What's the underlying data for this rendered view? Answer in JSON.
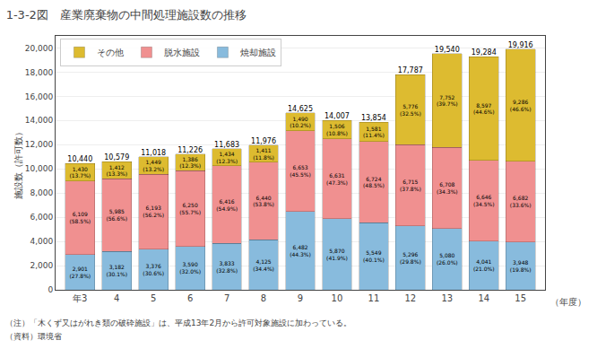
{
  "chart_data": {
    "type": "bar",
    "stacked": true,
    "title": "1-3-2図　産業廃棄物の中間処理施設数の推移",
    "ylabel": "施設数（許可数）",
    "xlabel": "（年度）",
    "notes": [
      "（注）「木くず又はがれき類の破砕施設」は、平成13年2月から許可対象施設に加わっている。",
      "（資料）環境省"
    ],
    "categories": [
      "年3",
      "4",
      "5",
      "6",
      "7",
      "8",
      "9",
      "10",
      "11",
      "12",
      "13",
      "14",
      "15"
    ],
    "series": [
      {
        "name": "焼却施設",
        "color": "#88bbdd",
        "values": [
          2901,
          3182,
          3376,
          3590,
          3833,
          4125,
          6482,
          5870,
          5549,
          5296,
          5080,
          4041,
          3948
        ],
        "value_labels": [
          "2,901\n(27.8%)",
          "3,182\n(30.1%)",
          "3,376\n(30.6%)",
          "3,590\n(32.0%)",
          "3,833\n(32.8%)",
          "4,125\n(34.4%)",
          "6,482\n(44.3%)",
          "5,870\n(41.9%)",
          "5,549\n(40.1%)",
          "5,296\n(29.8%)",
          "5,080\n(26.0%)",
          "4,041\n(21.0%)",
          "3,948\n(19.8%)"
        ]
      },
      {
        "name": "脱水施設",
        "color": "#f09090",
        "values": [
          6109,
          5985,
          6193,
          6250,
          6416,
          6440,
          6653,
          6631,
          6724,
          6715,
          6708,
          6646,
          6682
        ],
        "value_labels": [
          "6,109\n(58.5%)",
          "5,985\n(56.6%)",
          "6,193\n(56.2%)",
          "6,250\n(55.7%)",
          "6,416\n(54.9%)",
          "6,440\n(53.8%)",
          "6,653\n(45.5%)",
          "6,631\n(47.3%)",
          "6,724\n(48.5%)",
          "6,715\n(37.8%)",
          "6,708\n(34.3%)",
          "6,646\n(34.5%)",
          "6,682\n(33.6%)"
        ]
      },
      {
        "name": "その他",
        "color": "#ddbb30",
        "values": [
          1430,
          1412,
          1449,
          1386,
          1434,
          1411,
          1490,
          1506,
          1581,
          5776,
          7752,
          8597,
          9286
        ],
        "value_labels": [
          "1,430\n(13.7%)",
          "1,412\n(13.3%)",
          "1,449\n(13.2%)",
          "1,386\n(12.3%)",
          "1,434\n(12.3%)",
          "1,411\n(11.8%)",
          "1,490\n(10.2%)",
          "1,506\n(10.8%)",
          "1,581\n(11.4%)",
          "5,776\n(32.5%)",
          "7,752\n(39.7%)",
          "8,597\n(44.6%)",
          "9,286\n(46.6%)"
        ]
      }
    ],
    "totals": [
      10440,
      10579,
      11018,
      11226,
      11683,
      11976,
      14625,
      14007,
      13854,
      17787,
      19540,
      19284,
      19916
    ],
    "total_labels": [
      "10,440",
      "10,579",
      "11,018",
      "11,226",
      "11,683",
      "11,976",
      "14,625",
      "14,007",
      "13,854",
      "17,787",
      "19,540",
      "19,284",
      "19,916"
    ],
    "data_labels": true,
    "ylim": [
      0,
      21000
    ],
    "yticks": [
      0,
      {
        "value": 2000,
        "label": "2,000"
      },
      {
        "value": 4000,
        "label": "4,000"
      },
      {
        "value": 6000,
        "label": "6,000"
      },
      {
        "value": 8000,
        "label": "8,000"
      },
      {
        "value": 10000,
        "label": "10,000"
      },
      {
        "value": 12000,
        "label": "12,000"
      },
      {
        "value": 14000,
        "label": "14,000"
      },
      {
        "value": 16000,
        "label": "16,000"
      },
      {
        "value": 18000,
        "label": "18,000"
      },
      {
        "value": 20000,
        "label": "20,000"
      }
    ],
    "grid": true,
    "legend": "upper left"
  }
}
